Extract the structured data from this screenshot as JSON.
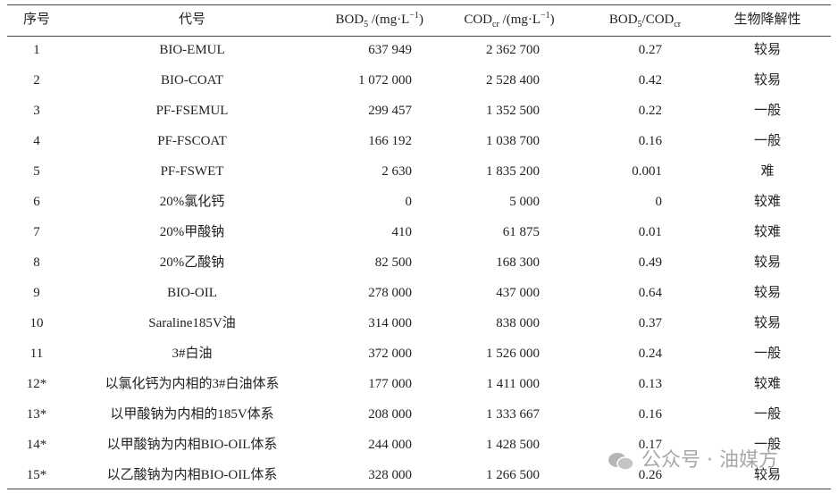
{
  "table": {
    "header": {
      "0": "序号",
      "1": "代号",
      "2": [
        "BOD",
        "5",
        " /(mg·L",
        "−1",
        ")"
      ],
      "3": [
        "COD",
        "cr",
        " /(mg·L",
        "−1",
        ")"
      ],
      "4": [
        "BOD",
        "5",
        "/COD",
        "cr"
      ],
      "5": "生物降解性"
    },
    "rows": [
      [
        "1",
        "BIO-EMUL",
        "637 949",
        "2 362 700",
        "0.27",
        "较易"
      ],
      [
        "2",
        "BIO-COAT",
        "1 072 000",
        "2 528 400",
        "0.42",
        "较易"
      ],
      [
        "3",
        "PF-FSEMUL",
        "299 457",
        "1 352 500",
        "0.22",
        "一般"
      ],
      [
        "4",
        "PF-FSCOAT",
        "166 192",
        "1 038 700",
        "0.16",
        "一般"
      ],
      [
        "5",
        "PF-FSWET",
        "2 630",
        "1 835 200",
        "0.001",
        "难"
      ],
      [
        "6",
        "20%氯化钙",
        "0",
        "5 000",
        "0",
        "较难"
      ],
      [
        "7",
        "20%甲酸钠",
        "410",
        "61 875",
        "0.01",
        "较难"
      ],
      [
        "8",
        "20%乙酸钠",
        "82 500",
        "168 300",
        "0.49",
        "较易"
      ],
      [
        "9",
        "BIO-OIL",
        "278 000",
        "437 000",
        "0.64",
        "较易"
      ],
      [
        "10",
        "Saraline185V油",
        "314 000",
        "838 000",
        "0.37",
        "较易"
      ],
      [
        "11",
        "3#白油",
        "372 000",
        "1 526 000",
        "0.24",
        "一般"
      ],
      [
        "12*",
        "以氯化钙为内相的3#白油体系",
        "177 000",
        "1 411 000",
        "0.13",
        "较难"
      ],
      [
        "13*",
        "以甲酸钠为内相的185V体系",
        "208 000",
        "1 333 667",
        "0.16",
        "一般"
      ],
      [
        "14*",
        "以甲酸钠为内相BIO-OIL体系",
        "244 000",
        "1 428 500",
        "0.17",
        "一般"
      ],
      [
        "15*",
        "以乙酸钠为内相BIO-OIL体系",
        "328 000",
        "1 266 500",
        "0.26",
        "较易"
      ]
    ]
  },
  "watermark": "公众号 · 油媒方"
}
